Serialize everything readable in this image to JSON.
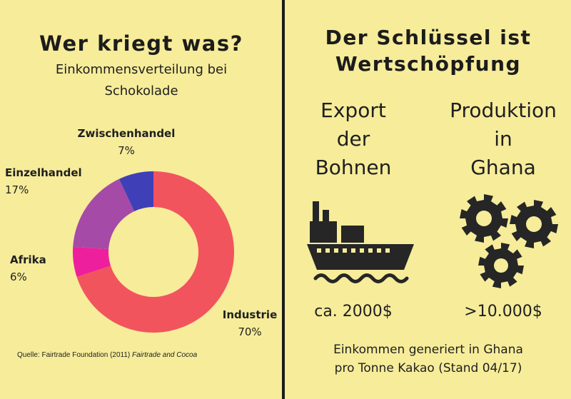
{
  "left": {
    "title": "Wer kriegt was?",
    "subtitle_line1": "Einkommensverteilung bei",
    "subtitle_line2": "Schokolade",
    "source_prefix": "Quelle: Fairtrade Foundation (2011) ",
    "source_italic": "Fairtrade and Cocoa"
  },
  "chart_data": {
    "type": "pie",
    "slices": [
      {
        "label": "Industrie",
        "value": 70,
        "value_label": "70%",
        "color": "#f2545e"
      },
      {
        "label": "Afrika",
        "value": 6,
        "value_label": "6%",
        "color": "#ee1f9c"
      },
      {
        "label": "Einzelhandel",
        "value": 17,
        "value_label": "17%",
        "color": "#a64aa8"
      },
      {
        "label": "Zwischenhandel",
        "value": 7,
        "value_label": "7%",
        "color": "#3f3fb8"
      }
    ],
    "donut": true
  },
  "right": {
    "title_line1": "Der Schlüssel ist",
    "title_line2": "Wertschöpfung",
    "export": {
      "lines": [
        "Export",
        "der",
        "Bohnen"
      ],
      "icon": "ship-icon",
      "value": "ca. 2000$"
    },
    "production": {
      "lines": [
        "Produktion",
        "in",
        "Ghana"
      ],
      "icon": "gears-icon",
      "value": ">10.000$"
    },
    "footer_line1": "Einkommen generiert in Ghana",
    "footer_line2": "pro Tonne Kakao (Stand 04/17)"
  },
  "colors": {
    "background": "#f6ec9a",
    "divider": "#1b1b1b",
    "icon": "#262626"
  }
}
